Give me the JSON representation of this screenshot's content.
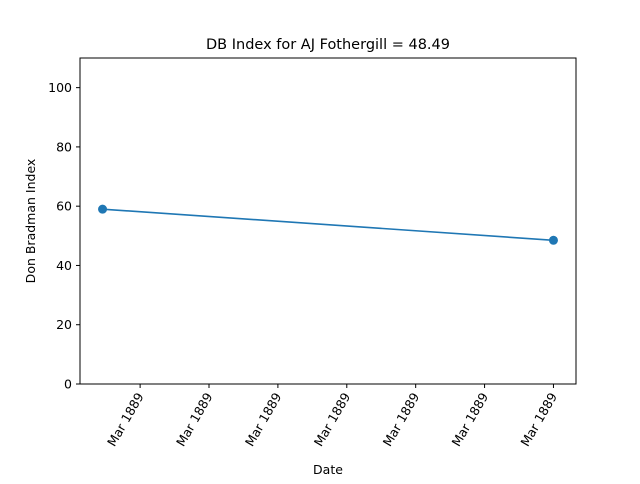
{
  "chart_data": {
    "type": "line",
    "title": "DB Index for AJ Fothergill = 48.49",
    "xlabel": "Date",
    "ylabel": "Don Bradman Index",
    "ylim": [
      0,
      110
    ],
    "yticks": [
      0,
      20,
      40,
      60,
      80,
      100
    ],
    "xtick_labels": [
      "Mar 1889",
      "Mar 1889",
      "Mar 1889",
      "Mar 1889",
      "Mar 1889",
      "Mar 1889",
      "Mar 1889"
    ],
    "x": [
      "1889-03-14",
      "1889-03-25"
    ],
    "series": [
      {
        "name": "",
        "color": "#1f77b4",
        "marker": "circle",
        "values": [
          59.0,
          48.49
        ]
      }
    ],
    "grid": false,
    "legend": "none"
  }
}
